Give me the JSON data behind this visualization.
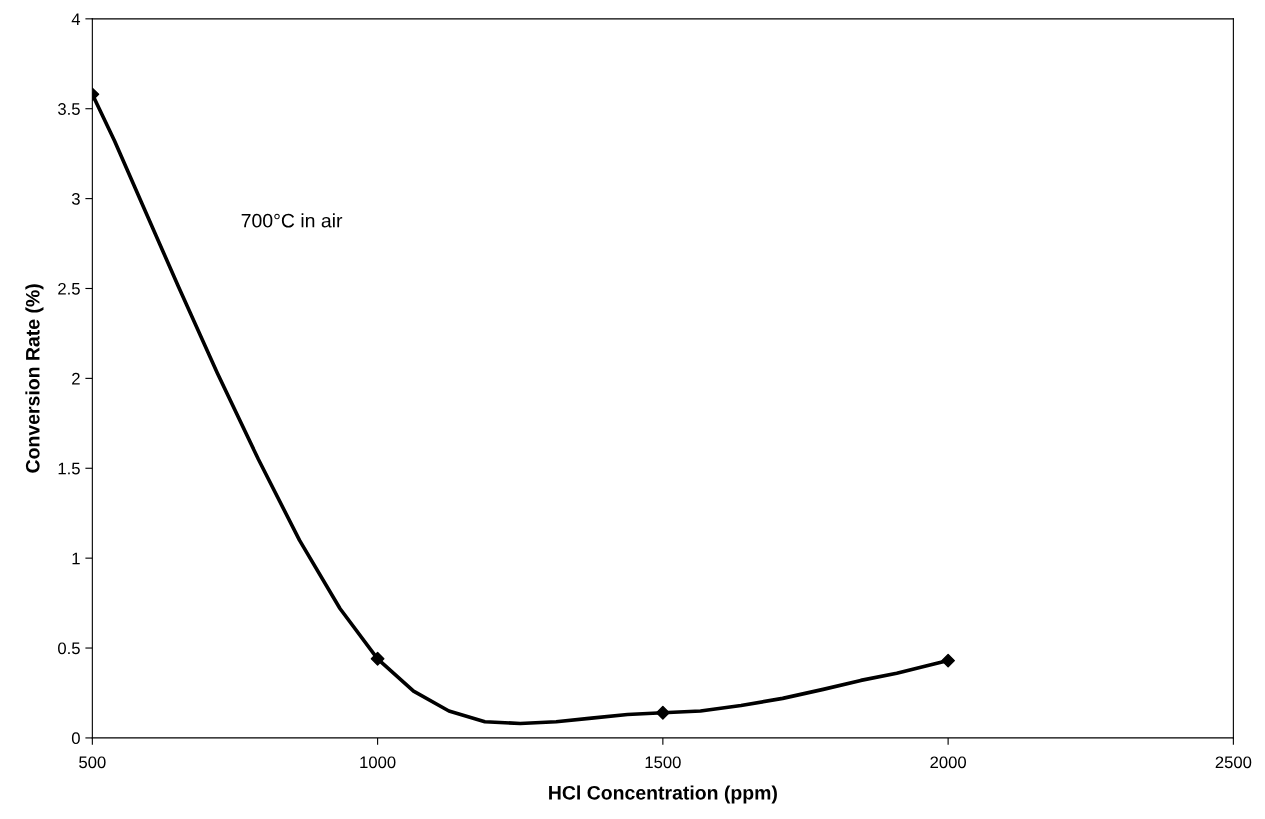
{
  "chart_data": {
    "type": "line",
    "xlabel": "HCl Concentration (ppm)",
    "ylabel": "Conversion Rate (%)",
    "annotations": [
      "700°C in air"
    ],
    "series": [
      {
        "color": "#000000",
        "x": [
          500,
          539,
          590,
          651,
          719,
          791,
          863,
          934,
          1000,
          1063,
          1125,
          1188,
          1250,
          1313,
          1375,
          1438,
          1500,
          1566,
          1637,
          1710,
          1781,
          1847,
          1910,
          1961,
          2000
        ],
        "values": [
          3.58,
          3.32,
          2.95,
          2.51,
          2.03,
          1.55,
          1.1,
          0.72,
          0.44,
          0.26,
          0.15,
          0.09,
          0.08,
          0.09,
          0.11,
          0.13,
          0.14,
          0.15,
          0.18,
          0.22,
          0.27,
          0.32,
          0.36,
          0.4,
          0.43
        ]
      },
      {
        "type": "scatter",
        "marker": "diamond",
        "color": "#000000",
        "x": [
          500,
          1000,
          1500,
          2000
        ],
        "values": [
          3.58,
          0.44,
          0.14,
          0.43
        ]
      }
    ],
    "xlim": [
      500,
      2500
    ],
    "xticks": [
      500,
      1000,
      1500,
      2000,
      2500
    ],
    "ylim": [
      0,
      4
    ],
    "yticks": [
      0,
      0.5,
      1,
      1.5,
      2,
      2.5,
      3,
      3.5,
      4
    ],
    "grid": false,
    "legend": false,
    "line_style": "solid"
  }
}
